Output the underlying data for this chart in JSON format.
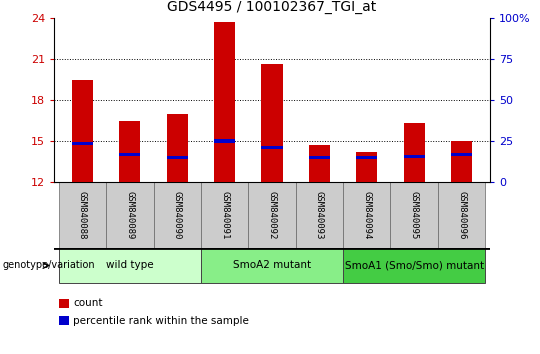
{
  "title": "GDS4495 / 100102367_TGI_at",
  "samples": [
    "GSM840088",
    "GSM840089",
    "GSM840090",
    "GSM840091",
    "GSM840092",
    "GSM840093",
    "GSM840094",
    "GSM840095",
    "GSM840096"
  ],
  "bar_heights": [
    19.5,
    16.5,
    17.0,
    23.7,
    20.6,
    14.7,
    14.2,
    16.3,
    15.0
  ],
  "blue_marker_values": [
    14.8,
    14.0,
    13.8,
    15.0,
    14.5,
    13.8,
    13.8,
    13.9,
    14.0
  ],
  "bar_color": "#cc0000",
  "blue_color": "#0000cc",
  "ylim_left": [
    12,
    24
  ],
  "yticks_left": [
    12,
    15,
    18,
    21,
    24
  ],
  "ylim_right": [
    0,
    100
  ],
  "yticks_right": [
    0,
    25,
    50,
    75,
    100
  ],
  "ytick_labels_right": [
    "0",
    "25",
    "50",
    "75",
    "100%"
  ],
  "groups": [
    {
      "label": "wild type",
      "start": 0,
      "end": 3,
      "color": "#ccffcc"
    },
    {
      "label": "SmoA2 mutant",
      "start": 3,
      "end": 6,
      "color": "#88ee88"
    },
    {
      "label": "SmoA1 (Smo/Smo) mutant",
      "start": 6,
      "end": 9,
      "color": "#44cc44"
    }
  ],
  "group_label": "genotype/variation",
  "legend_count_label": "count",
  "legend_percentile_label": "percentile rank within the sample",
  "left_tick_color": "#cc0000",
  "right_tick_color": "#0000cc",
  "bar_width": 0.45,
  "sample_bg_color": "#cccccc",
  "fig_width": 5.4,
  "fig_height": 3.54,
  "fig_dpi": 100
}
